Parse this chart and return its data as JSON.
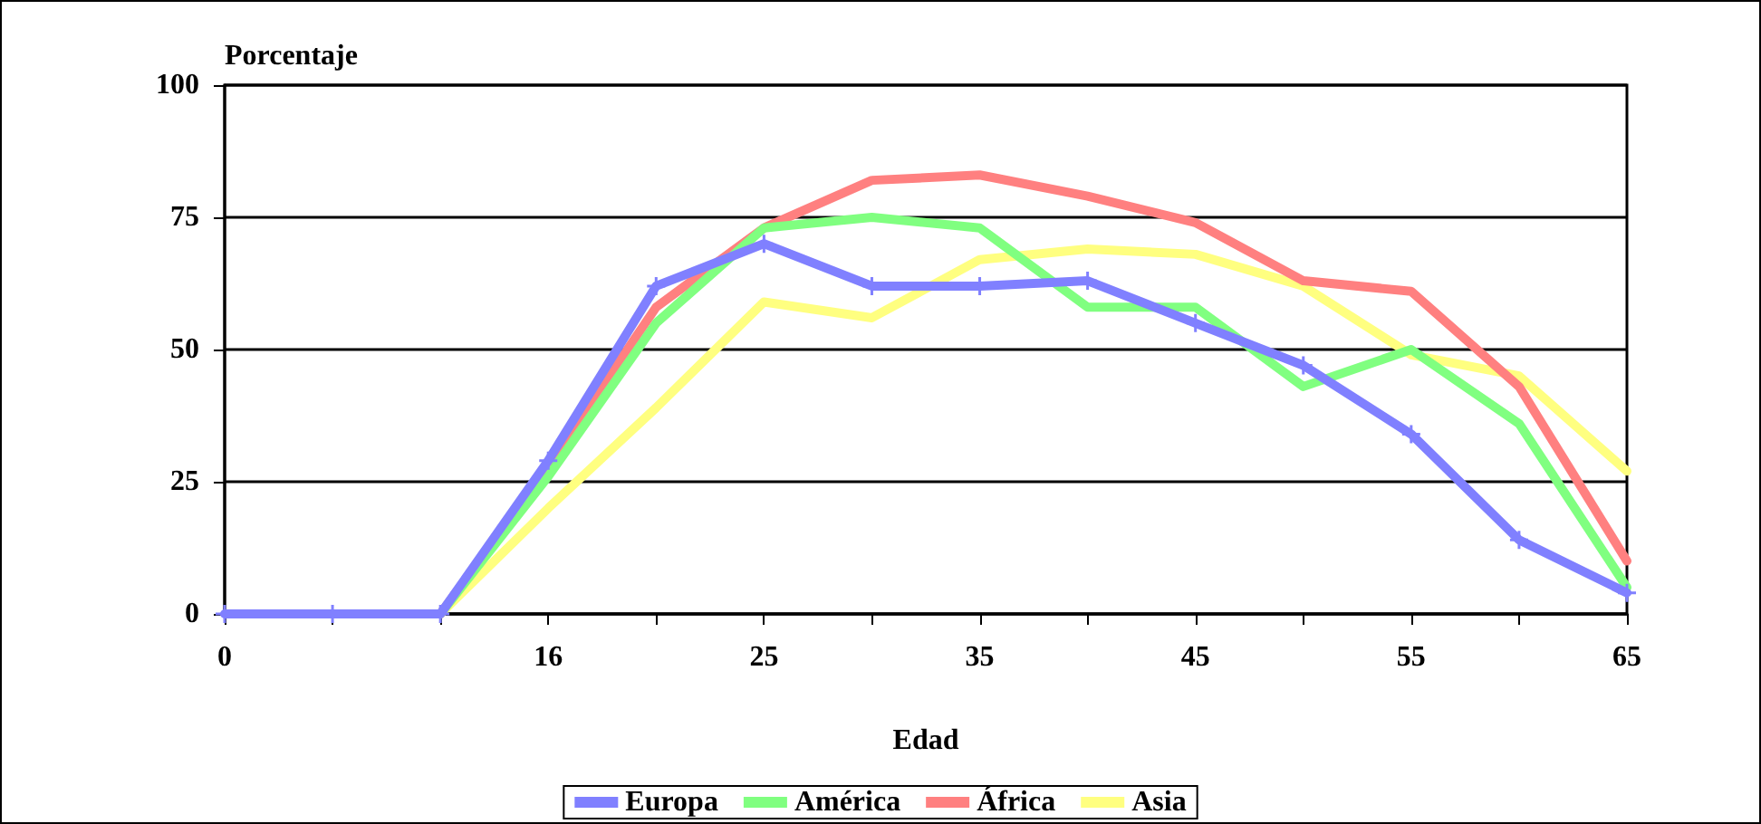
{
  "chart_data": {
    "type": "line",
    "ylabel": "Porcentaje",
    "xlabel": "Edad",
    "categories": [
      "0",
      null,
      null,
      "16",
      null,
      "25",
      null,
      "35",
      null,
      "45",
      null,
      "55",
      null,
      "65"
    ],
    "series": [
      {
        "name": "Europa",
        "color": "#8080ff",
        "marker": "cross",
        "values": [
          0,
          0,
          0,
          29,
          62,
          70,
          62,
          62,
          63,
          55,
          47,
          34,
          14,
          4
        ]
      },
      {
        "name": "América",
        "color": "#80ff80",
        "values": [
          null,
          null,
          0,
          26,
          55,
          73,
          75,
          73,
          58,
          58,
          43,
          50,
          36,
          5
        ]
      },
      {
        "name": "África",
        "color": "#ff8080",
        "values": [
          null,
          null,
          0,
          28,
          58,
          73,
          82,
          83,
          79,
          74,
          63,
          61,
          43,
          10
        ]
      },
      {
        "name": "Asia",
        "color": "#ffff80",
        "values": [
          null,
          null,
          0,
          20,
          39,
          59,
          56,
          67,
          69,
          68,
          62,
          49,
          45,
          27
        ]
      }
    ],
    "ylim": [
      0,
      100
    ],
    "yticks": [
      0,
      25,
      50,
      75,
      100
    ],
    "grid": "y",
    "legend": "bottom",
    "line_style": "solid"
  }
}
